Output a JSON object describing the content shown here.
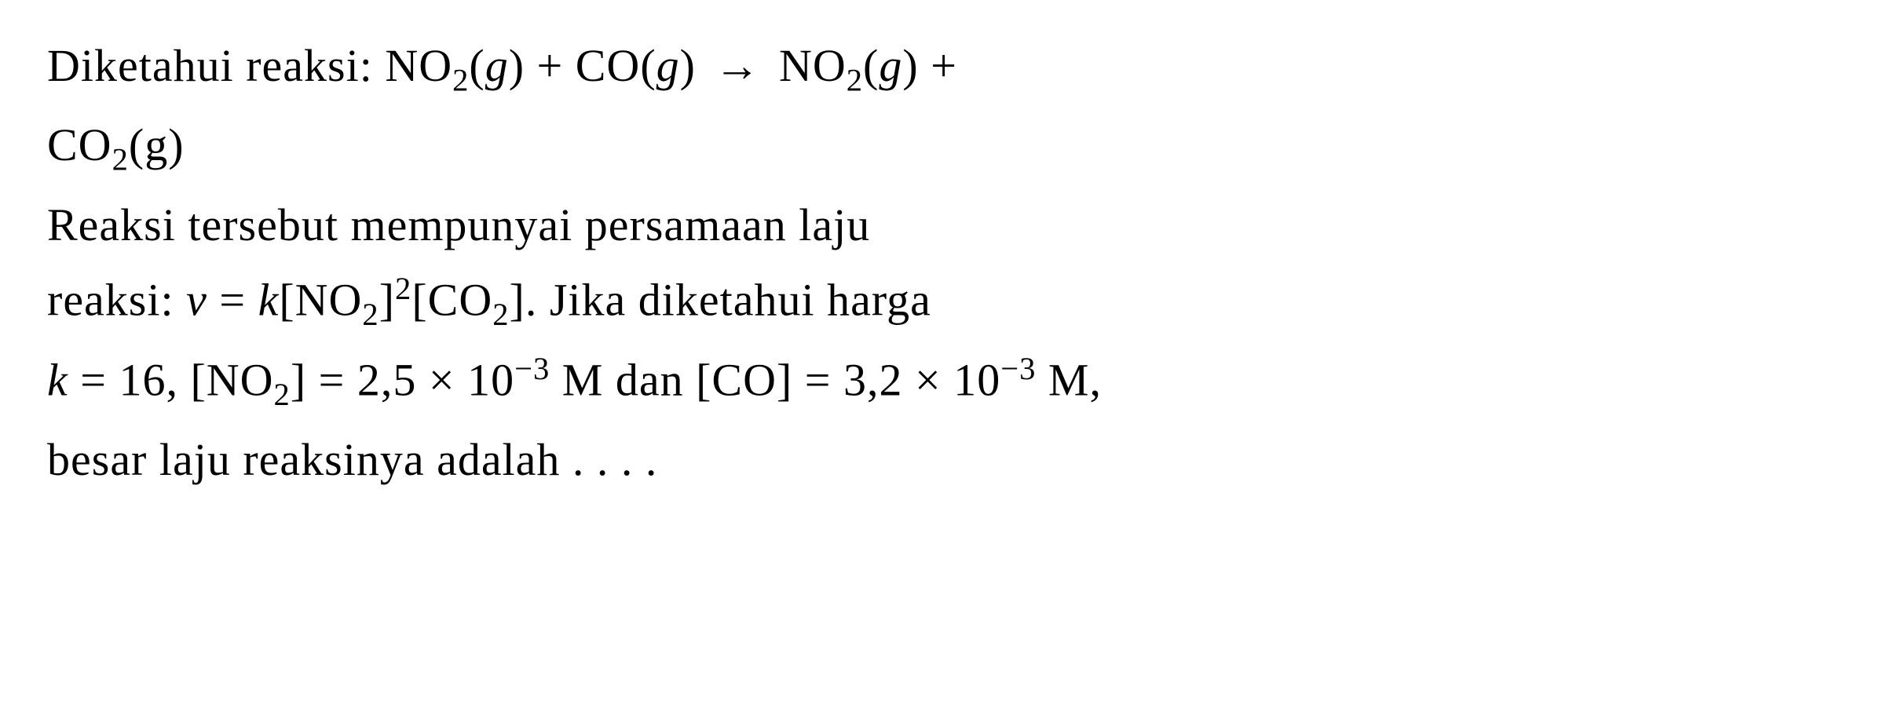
{
  "problem": {
    "line1_part1": "Diketahui reaksi: NO",
    "line1_sub1": "2",
    "line1_part2": "(",
    "line1_g1": "g",
    "line1_part3": ") + CO(",
    "line1_g2": "g",
    "line1_part4": ")",
    "line1_arrow": "→",
    "line1_part5": "NO",
    "line1_sub2": "2",
    "line1_part6": "(",
    "line1_g3": "g",
    "line1_part7": ") +",
    "line2_part1": "CO",
    "line2_sub1": "2",
    "line2_part2": "(g)",
    "line3": "Reaksi tersebut mempunyai persamaan laju",
    "line4_part1": "reaksi: ",
    "line4_v": "v",
    "line4_part2": " = ",
    "line4_k": "k",
    "line4_part3": "[NO",
    "line4_sub1": "2",
    "line4_part4": "]",
    "line4_sup1": "2",
    "line4_part5": "[CO",
    "line4_sub2": "2",
    "line4_part6": "]. Jika diketahui harga",
    "line5_k": "k",
    "line5_part1": " = 16, [NO",
    "line5_sub1": "2",
    "line5_part2": "] = 2,5 × 10",
    "line5_sup1": "−3",
    "line5_part3": " M dan [CO] = 3,2 × 10",
    "line5_sup2": "−3",
    "line5_part4": " M,",
    "line6": "besar laju reaksinya adalah . . . ."
  },
  "style": {
    "font_size_pt": 58,
    "font_family": "Times New Roman",
    "text_color": "#000000",
    "background_color": "#ffffff",
    "line_height": 1.5
  }
}
